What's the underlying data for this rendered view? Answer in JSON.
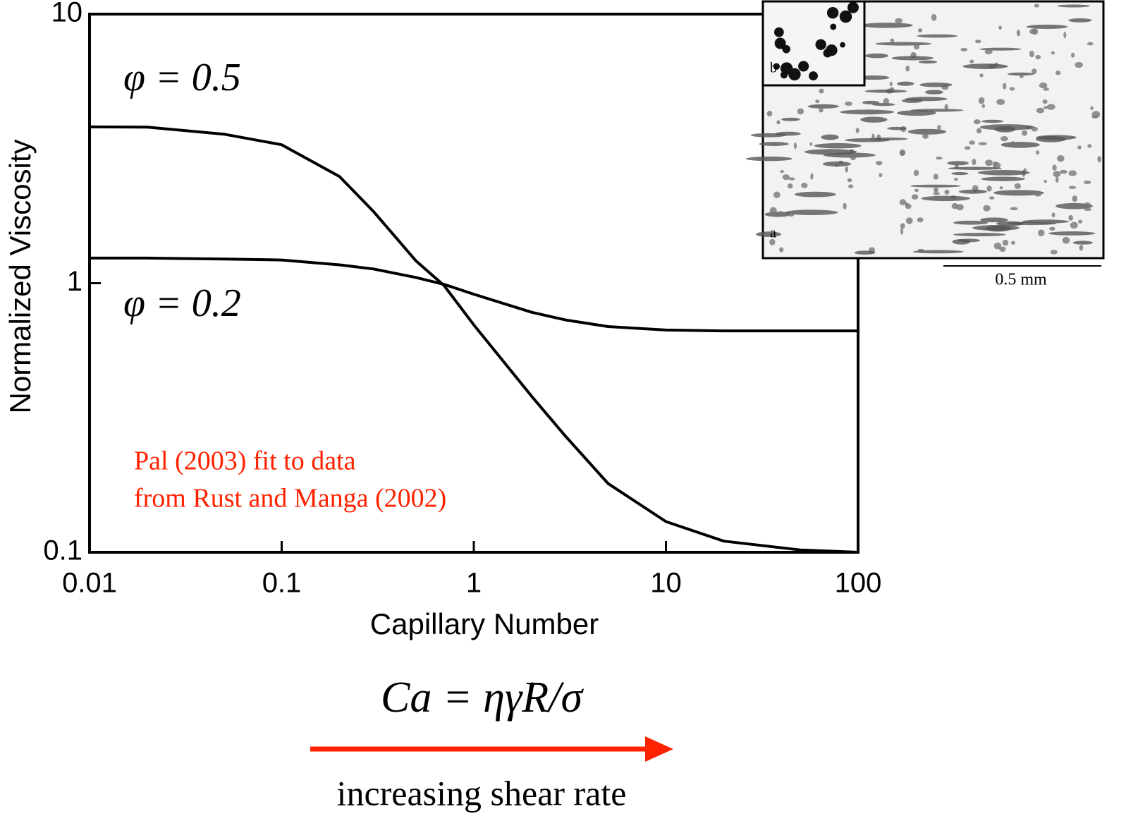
{
  "chart_data": {
    "type": "line",
    "x_label": "Capillary Number",
    "y_label": "Normalized Viscosity",
    "x": [
      0.01,
      0.02,
      0.05,
      0.1,
      0.2,
      0.3,
      0.5,
      0.7,
      1,
      2,
      3,
      5,
      10,
      20,
      50,
      100
    ],
    "series": [
      {
        "name": "φ = 0.5",
        "color": "#000000",
        "values": [
          3.81,
          3.8,
          3.58,
          3.27,
          2.49,
          1.85,
          1.21,
          0.98,
          0.7,
          0.38,
          0.27,
          0.18,
          0.13,
          0.11,
          0.102,
          0.1
        ]
      },
      {
        "name": "φ = 0.2",
        "color": "#000000",
        "values": [
          1.24,
          1.24,
          1.23,
          1.22,
          1.17,
          1.13,
          1.05,
          0.99,
          0.91,
          0.78,
          0.73,
          0.69,
          0.67,
          0.665,
          0.665,
          0.665
        ]
      }
    ],
    "xlim": [
      0.01,
      100
    ],
    "ylim": [
      0.1,
      10
    ],
    "xticks": [
      0.01,
      0.1,
      1,
      10,
      100
    ],
    "yticks": [
      0.1,
      1,
      10
    ],
    "log_x": true,
    "log_y": true,
    "annotations": [
      "Pal (2003) fit to data",
      "from Rust and Manga (2002)",
      "Ca = ηγ̇R/σ",
      "increasing shear rate"
    ],
    "annotation_color": "#ff2200",
    "inset_labels": [
      "a",
      "b",
      "0.5 mm"
    ]
  }
}
